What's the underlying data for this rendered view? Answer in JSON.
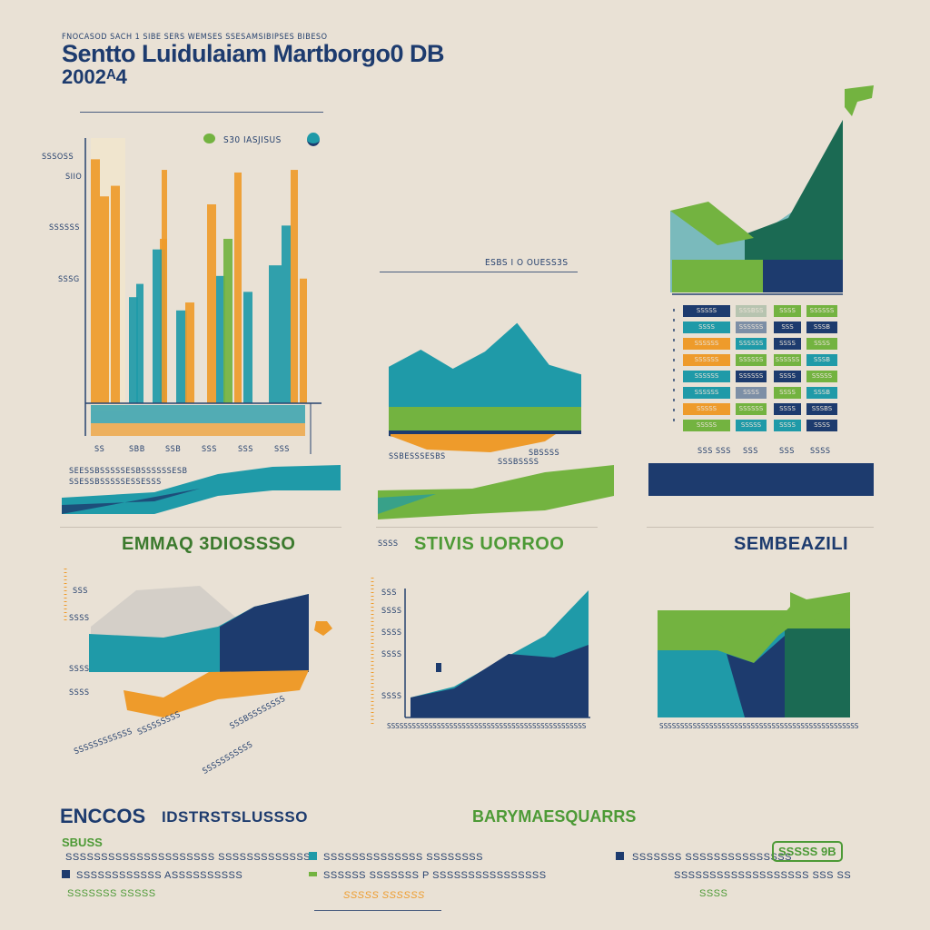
{
  "header": {
    "supertitle": "FNOCASOD SACH 1 SIBE SERS WEMSES SSESAMSIBIPSES BIBESO",
    "title": "Sentto Luidulaiam Martborgo0 DB",
    "year": "2002ᴬ4"
  },
  "panel_tl": {
    "legend_label": "S30 IASJISUS",
    "y_ticks": [
      "SSSOSS",
      "SIIO",
      "SSSSSS",
      "SSSG"
    ],
    "x_ticks": [
      "SS",
      "SBB",
      "SSB",
      "SSS",
      "SSS",
      "SSS"
    ],
    "caption_lines": [
      "SEESSBSSSSSESBSSSSSSESB",
      "SSESSBSSSSSESSESSS"
    ]
  },
  "panel_tc": {
    "label": "ESBS I O OUESS3S",
    "annot": [
      "SSBESSSESBS",
      "SSSBSSSS",
      "SBSSSS"
    ]
  },
  "panel_tr": {
    "grid_rows": [
      [
        "SSSSS",
        "SSSBSS",
        "SSSS",
        "SSSSSS"
      ],
      [
        "SSSS",
        "SSSSSS",
        "SSS",
        "SSSB"
      ],
      [
        "SSSSSS",
        "SSSSSS",
        "SSSS",
        "SSSS"
      ],
      [
        "SSSSSS",
        "SSSSSS",
        "SSSSSS",
        "SSSB"
      ],
      [
        "SSSSSS",
        "SSSSSS",
        "SSSS",
        "SSSSS"
      ],
      [
        "SSSSSS",
        "SSSS",
        "SSSS",
        "SSSB"
      ],
      [
        "SSSSS",
        "SSSSSS",
        "SSSS",
        "SSSBS"
      ],
      [
        "SSSSS",
        "SSSSS",
        "SSSS",
        "SSSS"
      ]
    ],
    "footer_ticks": [
      "SSS SSS",
      "SSS",
      "SSS",
      "SSSS"
    ]
  },
  "section_labels": {
    "left": "EMMAQ 3DIOSSSO",
    "center_prefix": "SSSS",
    "center": "STIVIS UORROO",
    "right": "SEMBEAZILI"
  },
  "panel_bl": {
    "y_ticks": [
      "SSS",
      "SSSS",
      "SSSS",
      "SSSS"
    ],
    "annotations": [
      "SSSSSSSSS",
      "SSSBSSSSSSSS",
      "SSSSSSSSSSSS",
      "SSSSSSSSSSS"
    ]
  },
  "panel_bc": {
    "y_ticks": [
      "SSS",
      "SSSS",
      "SSSS",
      "SSSS",
      "SSSS"
    ],
    "x_strip": "SSSSSSSSSSSSSSSSSSSSSSSSSSSSSSSSSSSSSSSSSSSSSSSS"
  },
  "panel_br": {
    "x_strip": "SSSSSSSSSSSSSSSSSSSSSSSSSSSSSSSSSSSSSSSSSSSSSSSS"
  },
  "footer": {
    "col1_title": "ENCCOS",
    "col1_subtitle": "IDSTRSTSLUSSSO",
    "col1_tag": "SBUSS",
    "col1_lines": [
      "SSSSSSSSSSSSSSSSSSSSS SSSSSSSSSSSSSS",
      "SSSSSSSSSSSS ASSSSSSSSSS",
      "SSSSSSS SSSSS"
    ],
    "col2_title": "BARYMAESQUARRS",
    "col2_lines": [
      "SSSSSSSSSSSSSS   SSSSSSSS",
      "SSSSSS SSSSSSS  P  SSSSSSSSSSSSSSSS",
      "SSSSS SSSSSS"
    ],
    "col3_lines": [
      "SSSSSSS SSSSSSSSSSSSSSS",
      "SSSSSSSSSSSSSSSSSSS SSS SS",
      "SSSS"
    ],
    "col3_badge": "SSSSS 9B"
  },
  "colors": {
    "navy": "#1d3b6e",
    "teal": "#1f9aa8",
    "green": "#73b340",
    "orange": "#ee9b2b",
    "background": "#e9e1d5"
  },
  "chart_data": [
    {
      "type": "bar",
      "values": [
        92,
        78,
        82,
        40,
        45,
        62,
        58,
        88,
        35,
        38,
        75,
        48,
        62,
        87,
        42,
        52,
        88,
        67,
        47
      ],
      "ylim": [
        0,
        100
      ]
    },
    {
      "type": "area",
      "series": [
        {
          "values": [
            42,
            60,
            40,
            58,
            88,
            44,
            34
          ]
        }
      ]
    },
    {
      "type": "table"
    },
    {
      "type": "area",
      "series": [
        {
          "values": [
            58,
            66,
            70,
            62,
            38
          ]
        }
      ]
    },
    {
      "type": "area",
      "series": [
        {
          "values": [
            18,
            24,
            40,
            58,
            82
          ]
        }
      ]
    },
    {
      "type": "area",
      "series": [
        {
          "values": [
            42,
            34,
            50,
            66
          ]
        }
      ]
    }
  ]
}
